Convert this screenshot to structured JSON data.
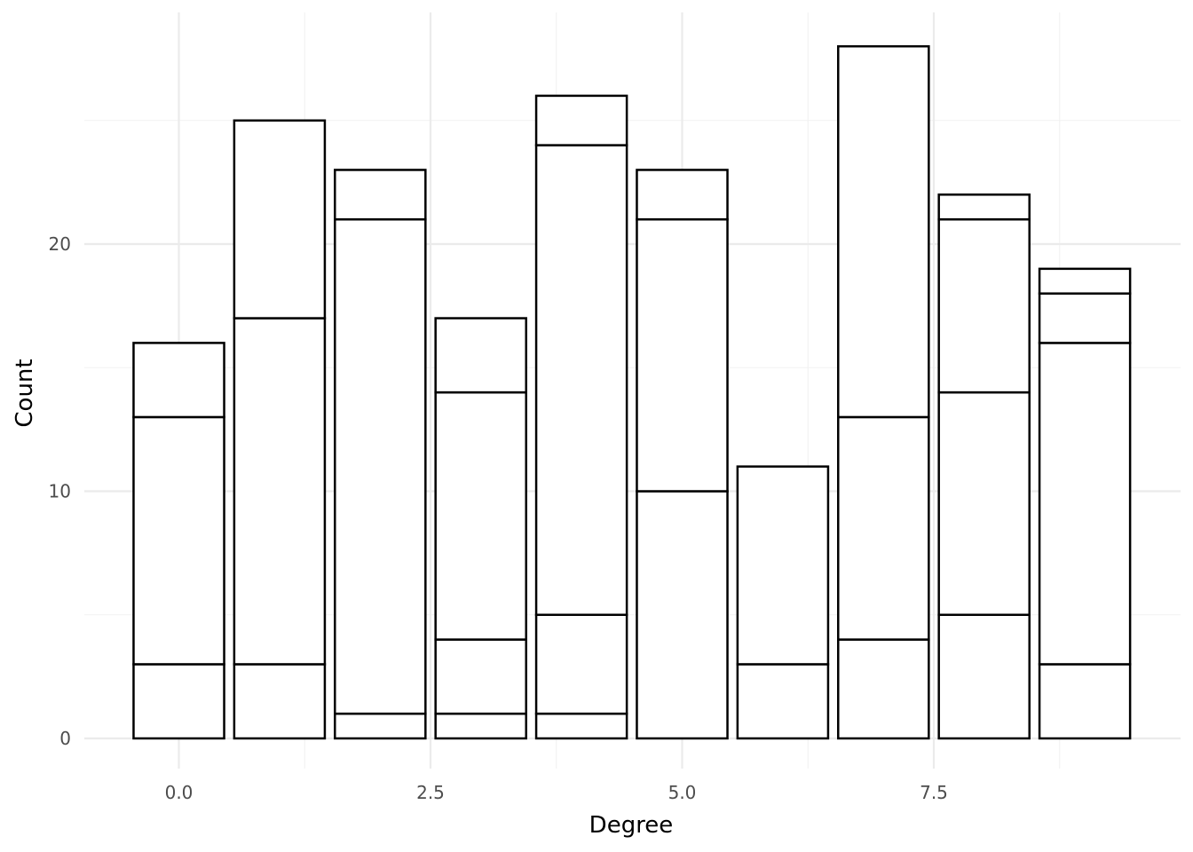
{
  "chart_data": {
    "type": "bar",
    "stacked": true,
    "xlabel": "Degree",
    "ylabel": "Count",
    "x": [
      0,
      1,
      2,
      3,
      4,
      5,
      6,
      7,
      8,
      9
    ],
    "segments": [
      [
        3,
        10,
        3
      ],
      [
        3,
        14,
        8
      ],
      [
        1,
        20,
        2
      ],
      [
        1,
        3,
        10,
        3
      ],
      [
        1,
        4,
        19,
        2
      ],
      [
        10,
        11,
        2
      ],
      [
        3,
        8
      ],
      [
        4,
        9,
        15
      ],
      [
        5,
        9,
        7,
        1
      ],
      [
        3,
        13,
        2,
        1
      ]
    ],
    "totals": [
      16,
      25,
      23,
      17,
      26,
      23,
      11,
      28,
      22,
      19
    ],
    "xlim": [
      -0.5,
      9.5
    ],
    "ylim": [
      0,
      28
    ],
    "x_ticks": [
      0.0,
      2.5,
      5.0,
      7.5
    ],
    "x_tick_labels": [
      "0.0",
      "2.5",
      "5.0",
      "7.5"
    ],
    "y_ticks": [
      0,
      10,
      20
    ],
    "y_tick_labels": [
      "0",
      "10",
      "20"
    ],
    "grid": true,
    "bar_fill": "#ffffff",
    "bar_stroke": "#000000"
  }
}
